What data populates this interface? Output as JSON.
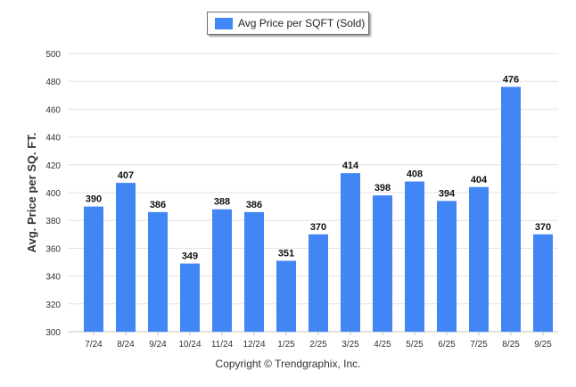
{
  "chart_data": {
    "type": "bar",
    "categories": [
      "7/24",
      "8/24",
      "9/24",
      "10/24",
      "11/24",
      "12/24",
      "1/25",
      "2/25",
      "3/25",
      "4/25",
      "5/25",
      "6/25",
      "7/25",
      "8/25",
      "9/25"
    ],
    "series": [
      {
        "name": "Avg Price per SQFT (Sold)",
        "values": [
          390,
          407,
          386,
          349,
          388,
          386,
          351,
          370,
          414,
          398,
          408,
          394,
          404,
          476,
          370
        ],
        "color": "#4285f4"
      }
    ],
    "ylabel": "Avg. Price per SQ. FT.",
    "xlabel": "",
    "ylim": [
      300,
      500
    ],
    "yticks": [
      300,
      320,
      340,
      360,
      380,
      400,
      420,
      440,
      460,
      480,
      500
    ],
    "grid": true,
    "legend_position": "top-center",
    "data_labels": true
  },
  "footer": "Copyright © Trendgraphix, Inc."
}
